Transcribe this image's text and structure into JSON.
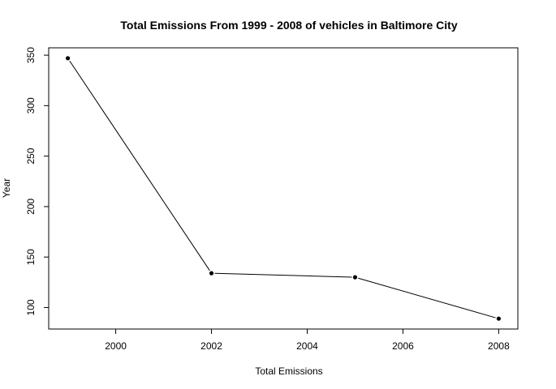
{
  "chart_data": {
    "type": "line",
    "title": "Total Emissions From 1999 - 2008 of vehicles in Baltimore City",
    "xlabel": "Total Emissions",
    "ylabel": "Year",
    "x": [
      1999,
      2002,
      2005,
      2008
    ],
    "y": [
      347,
      134,
      130,
      89
    ],
    "xlim": [
      1998.6,
      2008.4
    ],
    "ylim": [
      78.7,
      357.3
    ],
    "xticks": [
      2000,
      2002,
      2004,
      2006,
      2008
    ],
    "yticks": [
      100,
      150,
      200,
      250,
      300,
      350
    ],
    "grid": false,
    "line_color": "#000000",
    "point_color": "#000000"
  }
}
